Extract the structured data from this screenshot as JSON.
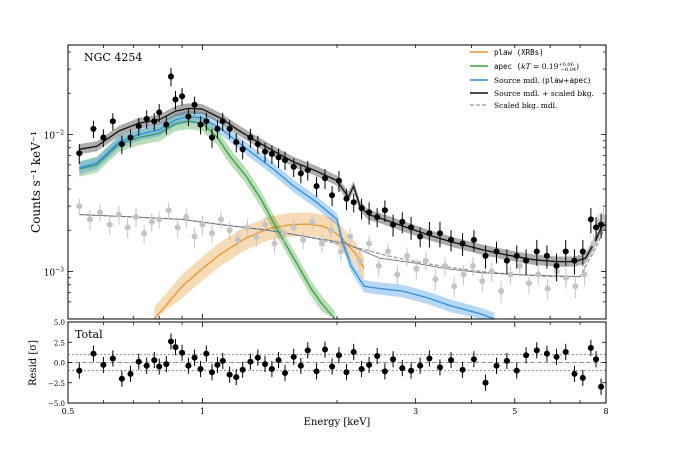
{
  "chart_data": [
    {
      "type": "line",
      "title": "NGC 4254",
      "ylabel": "Counts s⁻¹ keV⁻¹",
      "xlabel": "",
      "xscale": "log",
      "yscale": "log",
      "xlim": [
        0.5,
        8
      ],
      "ylim": [
        0.00045,
        0.045
      ],
      "y_major_ticks": [
        {
          "value": 0.001,
          "base": "10",
          "exp": "−3"
        },
        {
          "value": 0.01,
          "base": "10",
          "exp": "−2"
        }
      ],
      "legend": {
        "position": "top-right",
        "entries": [
          {
            "label": "plaw (XRBs)",
            "color": "#e8962e",
            "style": "solid"
          },
          {
            "label": "apec (",
            "kt": "kT",
            "kt_value": " = 0.19",
            "sup": "+0.06",
            "sub": "−0.04",
            "close": ")",
            "color": "#3a9e3a",
            "style": "solid"
          },
          {
            "label": "Source mdl. (",
            "mono1": "plaw",
            "plus": "+",
            "mono2": "apec",
            "close": ")",
            "color": "#2f8fe0",
            "style": "solid"
          },
          {
            "label": "Source mdl. + scaled bkg.",
            "color": "#111111",
            "style": "solid"
          },
          {
            "label": "Scaled bkg. mdl.",
            "color": "#999999",
            "style": "dashed"
          }
        ]
      },
      "series": [
        {
          "name": "plaw (XRBs)",
          "color": "#e8962e",
          "band": 0.22,
          "x": [
            0.78,
            0.9,
            1.0,
            1.1,
            1.25,
            1.4,
            1.55,
            1.7,
            1.85,
            1.95,
            2.05,
            2.2,
            2.3
          ],
          "y": [
            0.00045,
            0.00078,
            0.00105,
            0.00135,
            0.00175,
            0.00205,
            0.00218,
            0.00222,
            0.00215,
            0.002,
            0.00175,
            0.00135,
            0.00105
          ]
        },
        {
          "name": "apec",
          "color": "#3a9e3a",
          "band": 0.14,
          "x": [
            0.53,
            0.58,
            0.65,
            0.72,
            0.8,
            0.87,
            0.93,
            1.0,
            1.08,
            1.15,
            1.25,
            1.35,
            1.45,
            1.55,
            1.65,
            1.75,
            1.85,
            1.98
          ],
          "y": [
            0.0056,
            0.006,
            0.0085,
            0.0095,
            0.0102,
            0.012,
            0.0125,
            0.012,
            0.0095,
            0.007,
            0.005,
            0.0034,
            0.0022,
            0.0015,
            0.00105,
            0.00075,
            0.00058,
            0.00045
          ]
        },
        {
          "name": "Source mdl. (plaw+apec)",
          "color": "#2f8fe0",
          "band": 0.11,
          "x": [
            0.53,
            0.58,
            0.65,
            0.72,
            0.8,
            0.87,
            0.93,
            1.0,
            1.1,
            1.2,
            1.3,
            1.45,
            1.6,
            1.8,
            2.0,
            2.05,
            2.15,
            2.3,
            2.5,
            2.8,
            3.2,
            3.6,
            4.2,
            4.5
          ],
          "y": [
            0.0057,
            0.0062,
            0.0088,
            0.01,
            0.0108,
            0.0128,
            0.0135,
            0.0132,
            0.011,
            0.0088,
            0.0072,
            0.0055,
            0.0042,
            0.0032,
            0.0024,
            0.0017,
            0.0011,
            0.00078,
            0.00075,
            0.00072,
            0.00064,
            0.00056,
            0.00049,
            0.00045
          ]
        },
        {
          "name": "Source mdl. + scaled bkg.",
          "color": "#111111",
          "band": 0.09,
          "x": [
            0.53,
            0.58,
            0.65,
            0.72,
            0.8,
            0.87,
            0.93,
            1.0,
            1.1,
            1.2,
            1.3,
            1.45,
            1.6,
            1.8,
            2.0,
            2.12,
            2.18,
            2.25,
            2.35,
            2.5,
            2.8,
            3.2,
            3.6,
            4.2,
            4.8,
            5.5,
            6.2,
            6.8,
            7.2,
            7.6,
            7.8,
            8.0
          ],
          "y": [
            0.0078,
            0.0082,
            0.0106,
            0.0121,
            0.0128,
            0.0148,
            0.0155,
            0.0153,
            0.0131,
            0.0108,
            0.0092,
            0.0075,
            0.0063,
            0.0054,
            0.0046,
            0.0035,
            0.0042,
            0.003,
            0.0026,
            0.00245,
            0.00215,
            0.00185,
            0.00165,
            0.00145,
            0.00132,
            0.00122,
            0.00118,
            0.00118,
            0.00125,
            0.0017,
            0.0021,
            0.0022
          ]
        },
        {
          "name": "Scaled bkg. mdl.",
          "color": "#999999",
          "style": "dashed",
          "x": [
            0.53,
            0.7,
            0.9,
            1.1,
            1.4,
            1.7,
            2.0,
            2.3,
            2.6,
            3.0,
            3.5,
            4.2,
            5.0,
            6.0,
            7.0,
            7.6,
            8.0
          ],
          "y": [
            0.0026,
            0.0025,
            0.0024,
            0.0022,
            0.002,
            0.0018,
            0.0016,
            0.00145,
            0.0013,
            0.00118,
            0.00108,
            0.001,
            0.00095,
            0.00092,
            0.00092,
            0.0015,
            0.0022
          ]
        },
        {
          "name": "Background thin line",
          "color": "#5a6e86",
          "x": [
            0.53,
            0.7,
            0.9,
            1.1,
            1.4,
            1.7,
            1.9,
            2.1,
            2.3,
            2.5,
            3.0,
            3.5,
            4.2,
            5.0,
            6.0,
            7.0
          ],
          "y": [
            0.0026,
            0.0025,
            0.0024,
            0.0022,
            0.002,
            0.0018,
            0.0017,
            0.0016,
            0.0014,
            0.00125,
            0.00115,
            0.00105,
            0.00098,
            0.00095,
            0.00093,
            0.00092
          ]
        }
      ],
      "source_points": {
        "color": "#000000",
        "x": [
          0.53,
          0.57,
          0.6,
          0.63,
          0.66,
          0.69,
          0.72,
          0.75,
          0.78,
          0.8,
          0.83,
          0.85,
          0.87,
          0.9,
          0.93,
          0.96,
          0.99,
          1.02,
          1.05,
          1.08,
          1.11,
          1.15,
          1.19,
          1.23,
          1.28,
          1.33,
          1.38,
          1.43,
          1.48,
          1.53,
          1.6,
          1.66,
          1.72,
          1.8,
          1.88,
          1.95,
          2.02,
          2.1,
          2.18,
          2.27,
          2.36,
          2.46,
          2.56,
          2.67,
          2.8,
          2.93,
          3.07,
          3.22,
          3.4,
          3.6,
          3.82,
          4.05,
          4.3,
          4.55,
          4.8,
          5.05,
          5.3,
          5.6,
          5.9,
          6.2,
          6.5,
          6.8,
          7.1,
          7.4,
          7.6,
          7.8
        ],
        "y": [
          0.0073,
          0.011,
          0.0095,
          0.0125,
          0.0085,
          0.0095,
          0.0115,
          0.013,
          0.0125,
          0.0145,
          0.0118,
          0.0265,
          0.018,
          0.019,
          0.0135,
          0.0165,
          0.0118,
          0.0125,
          0.0095,
          0.011,
          0.0125,
          0.011,
          0.0088,
          0.0078,
          0.0095,
          0.0085,
          0.0075,
          0.0072,
          0.0068,
          0.0065,
          0.0058,
          0.0052,
          0.0055,
          0.0042,
          0.0048,
          0.0036,
          0.0046,
          0.0034,
          0.0032,
          0.0029,
          0.0027,
          0.0025,
          0.0028,
          0.0022,
          0.0023,
          0.0021,
          0.0018,
          0.0019,
          0.0019,
          0.0017,
          0.0016,
          0.0017,
          0.0013,
          0.0014,
          0.0012,
          0.0013,
          0.0012,
          0.0014,
          0.0013,
          0.0011,
          0.0014,
          0.0012,
          0.0014,
          0.0024,
          0.0021,
          0.0022
        ],
        "err": [
          0.0012,
          0.0016,
          0.0014,
          0.0018,
          0.0013,
          0.0014,
          0.0017,
          0.002,
          0.0018,
          0.0022,
          0.0018,
          0.004,
          0.0028,
          0.0028,
          0.002,
          0.0024,
          0.0018,
          0.0019,
          0.0015,
          0.0017,
          0.0019,
          0.0017,
          0.0014,
          0.0012,
          0.0015,
          0.0013,
          0.0012,
          0.0011,
          0.0011,
          0.001,
          0.0009,
          0.0008,
          0.0009,
          0.0007,
          0.0008,
          0.0006,
          0.0008,
          0.0006,
          0.0005,
          0.0005,
          0.0005,
          0.0004,
          0.0005,
          0.0004,
          0.0004,
          0.0004,
          0.0003,
          0.0004,
          0.0004,
          0.0003,
          0.0003,
          0.0003,
          0.00025,
          0.00025,
          0.00025,
          0.00025,
          0.00025,
          0.0003,
          0.00025,
          0.00025,
          0.0003,
          0.00025,
          0.0003,
          0.0005,
          0.0004,
          0.00045
        ]
      },
      "background_points": {
        "color": "#c4c4c4",
        "x": [
          0.53,
          0.56,
          0.59,
          0.62,
          0.65,
          0.68,
          0.71,
          0.74,
          0.77,
          0.8,
          0.84,
          0.88,
          0.92,
          0.96,
          1.0,
          1.05,
          1.1,
          1.15,
          1.2,
          1.26,
          1.32,
          1.38,
          1.45,
          1.52,
          1.6,
          1.68,
          1.76,
          1.85,
          1.94,
          2.04,
          2.14,
          2.25,
          2.36,
          2.48,
          2.6,
          2.73,
          2.87,
          3.01,
          3.16,
          3.32,
          3.49,
          3.66,
          3.84,
          4.03,
          4.23,
          4.44,
          4.66,
          4.89,
          5.13,
          5.38,
          5.64,
          5.92,
          6.21,
          6.51,
          6.83,
          7.16,
          7.5,
          7.7,
          7.9
        ],
        "y": [
          0.003,
          0.0024,
          0.0027,
          0.0022,
          0.0026,
          0.0021,
          0.0025,
          0.0019,
          0.0023,
          0.0024,
          0.0028,
          0.0021,
          0.0025,
          0.0018,
          0.0022,
          0.0019,
          0.0024,
          0.002,
          0.0017,
          0.0021,
          0.0018,
          0.0022,
          0.0016,
          0.0019,
          0.0021,
          0.0017,
          0.0023,
          0.0016,
          0.002,
          0.0014,
          0.0018,
          0.0012,
          0.0016,
          0.0011,
          0.0014,
          0.00095,
          0.0013,
          0.00105,
          0.0012,
          0.00088,
          0.0011,
          0.00078,
          0.00095,
          0.0011,
          0.00085,
          0.001,
          0.00072,
          0.00095,
          0.0011,
          0.00082,
          0.00095,
          0.00075,
          0.001,
          0.0009,
          0.00078,
          0.00095,
          0.0016,
          0.0023,
          0.0025
        ],
        "err": [
          0.0004,
          0.0004,
          0.0004,
          0.00035,
          0.0004,
          0.00035,
          0.0004,
          0.0003,
          0.00035,
          0.00035,
          0.0004,
          0.00035,
          0.0004,
          0.0003,
          0.00035,
          0.0003,
          0.00035,
          0.0003,
          0.00028,
          0.0003,
          0.00028,
          0.0003,
          0.00025,
          0.00028,
          0.0003,
          0.00025,
          0.0003,
          0.00024,
          0.00028,
          0.00022,
          0.00026,
          0.0002,
          0.00024,
          0.00018,
          0.0002,
          0.00016,
          0.0002,
          0.00017,
          0.00018,
          0.00015,
          0.00017,
          0.00014,
          0.00016,
          0.00017,
          0.00014,
          0.00016,
          0.00013,
          0.00015,
          0.00016,
          0.00014,
          0.00015,
          0.00013,
          0.00016,
          0.00015,
          0.00014,
          0.00016,
          0.00025,
          0.00035,
          0.0004
        ]
      }
    },
    {
      "type": "scatter",
      "title": "Total",
      "xlabel": "Energy [keV]",
      "ylabel": "Resid [σ]",
      "xscale": "log",
      "xlim": [
        0.5,
        8
      ],
      "ylim": [
        -5,
        5
      ],
      "xticks": [
        {
          "value": 0.5,
          "label": "0.5"
        },
        {
          "value": 1,
          "label": "1"
        },
        {
          "value": 3,
          "label": "3"
        },
        {
          "value": 5,
          "label": "5"
        },
        {
          "value": 8,
          "label": "8"
        }
      ],
      "yticks": [
        {
          "value": 5,
          "label": "5.0"
        },
        {
          "value": 2.5,
          "label": "2.5"
        },
        {
          "value": 0,
          "label": "0.0"
        },
        {
          "value": -2.5,
          "label": "−2.5"
        },
        {
          "value": -5,
          "label": "−5.0"
        }
      ],
      "reference_lines": [
        0,
        1,
        -1
      ],
      "points": {
        "x": [
          0.53,
          0.57,
          0.6,
          0.63,
          0.66,
          0.69,
          0.72,
          0.75,
          0.78,
          0.8,
          0.83,
          0.85,
          0.87,
          0.9,
          0.93,
          0.96,
          0.99,
          1.02,
          1.05,
          1.08,
          1.11,
          1.15,
          1.19,
          1.23,
          1.28,
          1.33,
          1.38,
          1.43,
          1.48,
          1.53,
          1.6,
          1.66,
          1.72,
          1.8,
          1.88,
          1.95,
          2.02,
          2.1,
          2.18,
          2.27,
          2.36,
          2.46,
          2.56,
          2.67,
          2.8,
          2.93,
          3.07,
          3.22,
          3.4,
          3.6,
          3.82,
          4.05,
          4.3,
          4.55,
          4.8,
          5.05,
          5.3,
          5.6,
          5.9,
          6.2,
          6.5,
          6.8,
          7.1,
          7.4,
          7.6,
          7.8
        ],
        "y": [
          -1.0,
          1.1,
          -0.3,
          0.5,
          -2.0,
          -1.4,
          0.1,
          -0.4,
          0.3,
          -0.5,
          -0.2,
          2.6,
          1.9,
          1.2,
          -0.4,
          0.6,
          -0.8,
          1.1,
          -1.2,
          -0.3,
          0.2,
          -1.5,
          -1.8,
          -0.9,
          0.1,
          0.6,
          -0.2,
          -0.8,
          0.3,
          -1.3,
          0.7,
          -0.4,
          1.5,
          -1.1,
          1.6,
          -0.5,
          0.9,
          -1.2,
          1.3,
          -0.8,
          -0.3,
          0.8,
          -1.1,
          0.4,
          -0.7,
          -1.0,
          -0.4,
          0.5,
          -0.6,
          0.3,
          -0.9,
          0.4,
          -2.5,
          -0.4,
          0.2,
          -1.0,
          0.9,
          1.5,
          1.1,
          0.7,
          1.3,
          -1.4,
          -1.9,
          1.8,
          0.4,
          -3.0
        ],
        "err": 1.0
      }
    }
  ]
}
